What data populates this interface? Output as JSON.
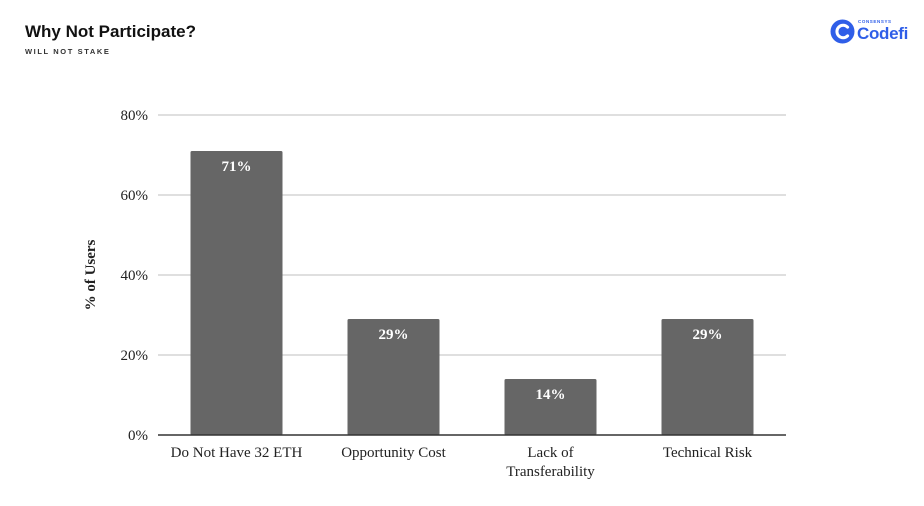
{
  "header": {
    "title": "Why Not Participate?",
    "subtitle": "WILL NOT STAKE"
  },
  "logo": {
    "small_text": "CONSENSYS",
    "name": "Codefi",
    "icon": "codefi-logo-icon",
    "color": "#2f5ee8"
  },
  "chart_data": {
    "type": "bar",
    "title": "",
    "xlabel": "",
    "ylabel": "% of Users",
    "categories": [
      "Do Not Have 32 ETH",
      "Opportunity Cost",
      "Lack of Transferability",
      "Technical Risk"
    ],
    "category_lines": [
      [
        "Do Not Have 32 ETH"
      ],
      [
        "Opportunity Cost"
      ],
      [
        "Lack of",
        "Transferability"
      ],
      [
        "Technical Risk"
      ]
    ],
    "values": [
      71,
      29,
      14,
      29
    ],
    "data_labels": [
      "71%",
      "29%",
      "14%",
      "29%"
    ],
    "ylim": [
      0,
      80
    ],
    "yticks": [
      0,
      20,
      40,
      60,
      80
    ],
    "ytick_labels": [
      "0%",
      "20%",
      "40%",
      "60%",
      "80%"
    ],
    "grid": true,
    "legend": "none",
    "bar_color": "#666666",
    "label_color": "#ffffff"
  }
}
